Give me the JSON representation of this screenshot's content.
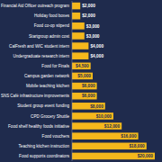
{
  "chart_data": {
    "type": "bar",
    "orientation": "horizontal",
    "categories": [
      "Financial Aid Officer outreach program",
      "Holiday food boxes",
      "Food co-op stipend",
      "Startgroup admin cost",
      "CalFresh and WIC student intern",
      "Undergraduate research intern",
      "Food for Finals",
      "Campus garden network",
      "Mobile teaching kitchen",
      "SNS Café infrastructure improvements",
      "Student group event funding",
      "CPD Grocery Shuttle",
      "Food shelf healthy foods initiative",
      "Food vouchers",
      "Teaching kitchen instruction",
      "Food supports coordinators"
    ],
    "values": [
      2000,
      2000,
      3000,
      3000,
      4000,
      4000,
      4500,
      5000,
      6000,
      6000,
      8000,
      10000,
      12000,
      16000,
      18000,
      20000
    ],
    "value_labels": [
      "$2,000",
      "$2,000",
      "$3,000",
      "$3,000",
      "$4,000",
      "$4,000",
      "$4,500",
      "$5,000",
      "$6,000",
      "$6,000",
      "$8,000",
      "$10,000",
      "$12,000",
      "$16,000",
      "$18,000",
      "$20,000"
    ],
    "color": "#f5b81c",
    "xlim": [
      0,
      20000
    ],
    "data_labels": true,
    "tick_labels": "y",
    "grid": false
  }
}
